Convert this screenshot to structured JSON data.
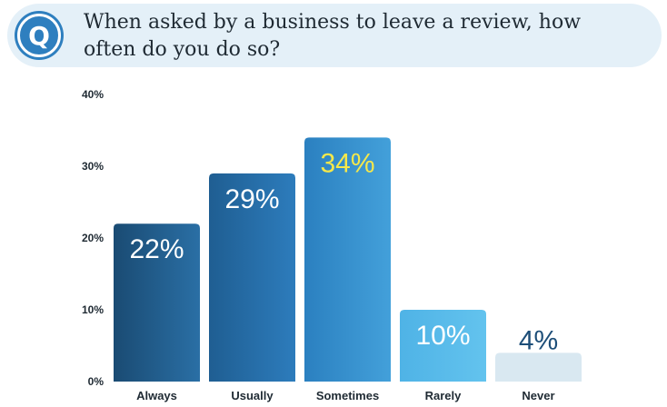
{
  "question": {
    "badge": "Q",
    "text": "When asked by a business to leave a review, how often do you do so?"
  },
  "colors": {
    "banner": "#e4f0f8",
    "badge": "#2e7fbf",
    "highlight_label": "#f6e84a",
    "dark_label": "#1d4e78"
  },
  "chart_data": {
    "type": "bar",
    "categories": [
      "Always",
      "Usually",
      "Sometimes",
      "Rarely",
      "Never"
    ],
    "values": [
      22,
      29,
      34,
      10,
      4
    ],
    "value_labels": [
      "22%",
      "29%",
      "34%",
      "10%",
      "4%"
    ],
    "y_ticks": [
      "0%",
      "10%",
      "20%",
      "30%",
      "40%"
    ],
    "ylim": [
      0,
      40
    ],
    "grid": false,
    "bar_colors": [
      [
        "#1a4b73",
        "#2a6fa5"
      ],
      [
        "#1f5e92",
        "#2d7cbc"
      ],
      [
        "#2b80c0",
        "#43a0da"
      ],
      [
        "#4fb3e6",
        "#63c3ee"
      ],
      [
        "#d9e8f1",
        "#d9e8f1"
      ]
    ],
    "label_colors": [
      "#ffffff",
      "#ffffff",
      "#f6e84a",
      "#ffffff",
      "#1d4e78"
    ]
  }
}
